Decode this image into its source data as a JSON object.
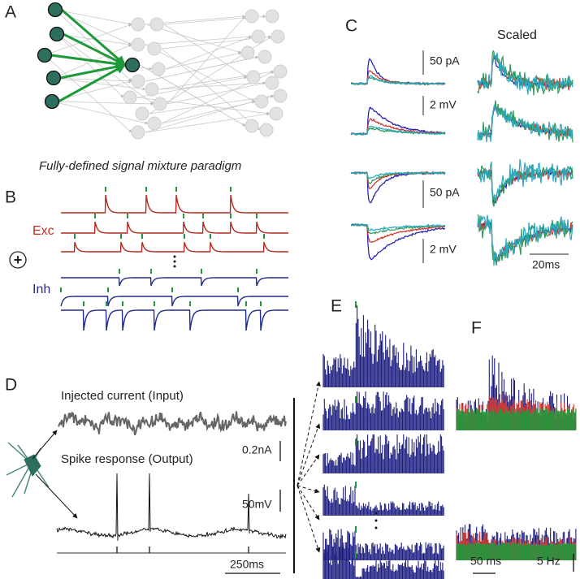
{
  "panels": {
    "a": {
      "label": "A"
    },
    "b": {
      "label": "B",
      "title": "Fully-defined signal mixture paradigm",
      "exc": "Exc",
      "plus": "+",
      "inh": "Inh"
    },
    "c": {
      "label": "C",
      "scaled": "Scaled",
      "current_bar_top": "50 pA",
      "voltage_bar_top": "2 mV",
      "current_bar_bottom": "50 pA",
      "voltage_bar_bottom": "2 mV",
      "time_bar": "20ms"
    },
    "d": {
      "label": "D",
      "input": "Injected current (Input)",
      "current_bar": "0.2nA",
      "output": "Spike response (Output)",
      "voltage_bar": "50mV",
      "time_bar": "250ms"
    },
    "e": {
      "label": "E"
    },
    "f": {
      "label": "F",
      "time_bar": "50 ms",
      "rate_bar": "5 Hz"
    }
  }
}
